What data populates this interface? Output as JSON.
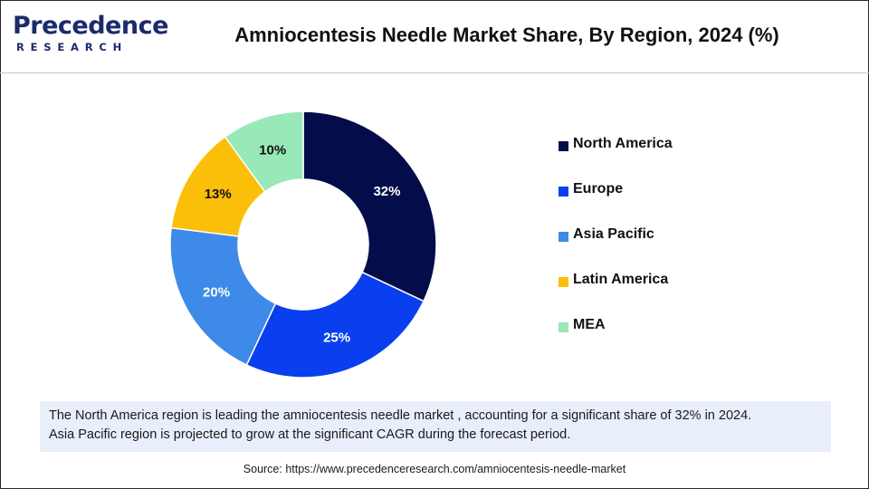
{
  "logo": {
    "line1": "Precedence",
    "line2": "RESEARCH"
  },
  "title": "Amniocentesis Needle Market Share, By Region, 2024 (%)",
  "chart_data": {
    "type": "pie",
    "donut": true,
    "categories": [
      "North America",
      "Europe",
      "Asia Pacific",
      "Latin America",
      "MEA"
    ],
    "values": [
      32,
      25,
      20,
      13,
      10
    ],
    "labels": [
      "32%",
      "25%",
      "20%",
      "13%",
      "10%"
    ],
    "colors": [
      "#050c4a",
      "#0a3fef",
      "#3e8ae8",
      "#fbbf09",
      "#99e8b8"
    ],
    "label_colors": [
      "#ffffff",
      "#ffffff",
      "#ffffff",
      "#111111",
      "#111111"
    ],
    "legend_position": "right",
    "start": "top",
    "direction": "clockwise"
  },
  "note": {
    "line1": "The North America region is leading the amniocentesis needle market , accounting for a significant share of 32% in 2024.",
    "line2": "Asia Pacific region is projected to grow at the significant CAGR during the forecast period."
  },
  "source": "Source: https://www.precedenceresearch.com/amniocentesis-needle-market"
}
